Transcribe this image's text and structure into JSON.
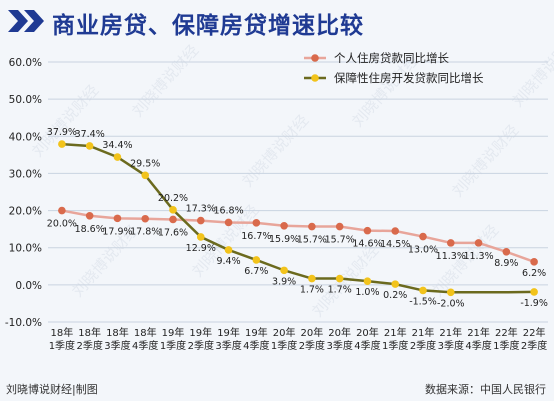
{
  "header": {
    "title": "商业房贷、保障房贷增速比较"
  },
  "footer": {
    "source_left": "刘晓博说财经|制图",
    "source_right": "数据来源：中国人民银行"
  },
  "watermark_text": "刘晓博说财经",
  "colors": {
    "title": "#1f3a93",
    "chevron": "#1f3a93",
    "series1_line": "#e8a59a",
    "series1_marker": "#d96a4c",
    "series2_line": "#6b6a1e",
    "series2_marker": "#f2c31b",
    "grid": "#c9d3e0",
    "background": "#f3f6fa"
  },
  "chart_data": {
    "type": "line",
    "categories": [
      [
        "18年",
        "1季度"
      ],
      [
        "18年",
        "2季度"
      ],
      [
        "18年",
        "3季度"
      ],
      [
        "18年",
        "4季度"
      ],
      [
        "19年",
        "1季度"
      ],
      [
        "19年",
        "2季度"
      ],
      [
        "19年",
        "3季度"
      ],
      [
        "19年",
        "4季度"
      ],
      [
        "20年",
        "1季度"
      ],
      [
        "20年",
        "2季度"
      ],
      [
        "20年",
        "3季度"
      ],
      [
        "20年",
        "4季度"
      ],
      [
        "21年",
        "1季度"
      ],
      [
        "21年",
        "2季度"
      ],
      [
        "21年",
        "3季度"
      ],
      [
        "21年",
        "4季度"
      ],
      [
        "22年",
        "1季度"
      ],
      [
        "22年",
        "2季度"
      ]
    ],
    "y_ticks": [
      "-10.0%",
      "0.0%",
      "10.0%",
      "20.0%",
      "30.0%",
      "40.0%",
      "50.0%",
      "60.0%"
    ],
    "ylim": [
      -10,
      60
    ],
    "grid": true,
    "legend_position": "top-right",
    "series": [
      {
        "name": "个人住房贷款同比增长",
        "values": [
          20.0,
          18.6,
          17.9,
          17.8,
          17.6,
          17.3,
          16.8,
          16.7,
          15.9,
          15.7,
          15.7,
          14.6,
          14.5,
          13.0,
          11.3,
          11.3,
          8.9,
          6.2
        ],
        "labels": [
          "20.0%",
          "18.6%",
          "17.9%",
          "17.8%",
          "17.6%",
          "17.3%",
          "16.8%",
          "16.7%",
          "15.9%",
          "15.7%",
          "15.7%",
          "14.6%",
          "14.5%",
          "13.0%",
          "11.3%",
          "11.3%",
          "8.9%",
          "6.2%"
        ]
      },
      {
        "name": "保障性住房开发贷款同比增长",
        "values": [
          37.9,
          37.4,
          34.4,
          29.5,
          20.2,
          12.9,
          9.4,
          6.7,
          3.9,
          1.7,
          1.7,
          1.0,
          0.2,
          -1.5,
          -2.0,
          null,
          null,
          -1.9
        ],
        "labels": [
          "37.9%",
          "37.4%",
          "34.4%",
          "29.5%",
          "20.2%",
          "12.9%",
          "9.4%",
          "6.7%",
          "3.9%",
          "1.7%",
          "1.7%",
          "1.0%",
          "0.2%",
          "-1.5%",
          "-2.0%",
          "",
          "",
          "-1.9%"
        ]
      }
    ]
  }
}
